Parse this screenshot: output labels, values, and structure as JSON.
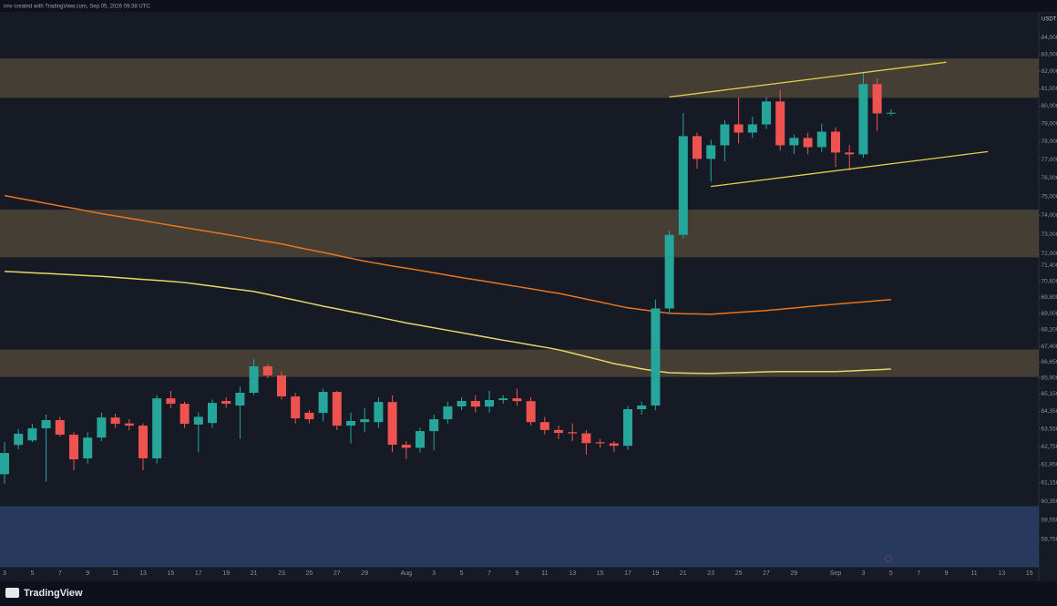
{
  "chart_data": {
    "type": "candlestick",
    "title": "nnv created with TradingView.com, Sep 05, 2026 09:38 UTC",
    "brand": "TradingView",
    "currency": "USDT",
    "log": true,
    "grid": false,
    "up_color": "#26a69a",
    "down_color": "#ef5350",
    "categories": [
      "3",
      null,
      "5",
      null,
      "7",
      null,
      "9",
      null,
      "11",
      null,
      "13",
      null,
      "15",
      null,
      "17",
      null,
      "19",
      null,
      "21",
      null,
      "23",
      null,
      "25",
      null,
      "27",
      null,
      "29",
      null,
      null,
      "Aug",
      null,
      "3",
      null,
      "5",
      null,
      "7",
      null,
      "9",
      null,
      "11",
      null,
      "13",
      null,
      "15",
      null,
      "17",
      null,
      "19",
      null,
      "21",
      null,
      "23",
      null,
      "25",
      null,
      "27",
      null,
      "29",
      null,
      null,
      "Sep",
      null,
      "3",
      null,
      "5",
      null,
      "7",
      null,
      "9",
      null,
      "11",
      null,
      "13",
      null,
      "15"
    ],
    "open": [
      61530,
      62830,
      63030,
      63580,
      63950,
      63290,
      62230,
      63160,
      64070,
      63800,
      63700,
      62230,
      64950,
      64700,
      63750,
      63820,
      64830,
      64620,
      65210,
      66450,
      66020,
      65040,
      64290,
      64280,
      65250,
      63700,
      63860,
      63860,
      64780,
      62840,
      62700,
      63450,
      63990,
      64580,
      64830,
      64570,
      64870,
      64950,
      64820,
      63860,
      63500,
      63400,
      63350,
      62950,
      62900,
      62790,
      64450,
      64620,
      69250,
      72980,
      78300,
      77040,
      77790,
      78960,
      78500,
      78960,
      80260,
      77790,
      78200,
      77690,
      78550,
      77390,
      77290,
      81260,
      79580,
      null,
      null,
      null,
      null,
      null,
      null,
      null,
      null,
      null,
      null
    ],
    "high": [
      62960,
      63540,
      63790,
      64200,
      64100,
      63400,
      63400,
      64300,
      64250,
      64000,
      63800,
      65100,
      65300,
      64800,
      64300,
      64900,
      65000,
      65500,
      66800,
      66550,
      66200,
      65200,
      64400,
      65400,
      65300,
      64300,
      64500,
      65000,
      65100,
      63000,
      63600,
      64200,
      64800,
      65000,
      65100,
      65300,
      65100,
      65400,
      65000,
      64100,
      63700,
      63800,
      63500,
      63100,
      63000,
      64600,
      64800,
      69700,
      73200,
      79600,
      78500,
      78100,
      79200,
      80500,
      79400,
      80500,
      80900,
      78400,
      78500,
      79000,
      78800,
      77800,
      82000,
      81600,
      79800,
      null,
      null,
      null,
      null,
      null,
      null,
      null,
      null,
      null,
      null
    ],
    "low": [
      61120,
      62630,
      62950,
      61200,
      63200,
      61700,
      62000,
      63000,
      63600,
      63500,
      61700,
      62000,
      64500,
      63600,
      62500,
      63600,
      64500,
      63100,
      65100,
      65900,
      64900,
      63800,
      63800,
      63900,
      63500,
      62900,
      63400,
      63600,
      62500,
      62200,
      62500,
      62600,
      63800,
      64400,
      64300,
      64300,
      64700,
      64600,
      63700,
      63300,
      63100,
      63000,
      62400,
      62700,
      62500,
      62600,
      64200,
      64400,
      69000,
      72800,
      76500,
      75800,
      76900,
      77900,
      78200,
      78700,
      77500,
      77300,
      77300,
      77400,
      76600,
      76400,
      77100,
      78600,
      79450,
      null,
      null,
      null,
      null,
      null,
      null,
      null,
      null,
      null,
      null
    ],
    "close": [
      62470,
      63330,
      63580,
      63950,
      63290,
      62190,
      63160,
      64070,
      63780,
      63700,
      62230,
      64950,
      64700,
      63780,
      64100,
      64740,
      64700,
      65210,
      66450,
      66020,
      65040,
      64030,
      63990,
      65250,
      63700,
      63910,
      63990,
      64780,
      62840,
      62700,
      63450,
      63990,
      64580,
      64830,
      64570,
      64870,
      64950,
      64820,
      63860,
      63500,
      63370,
      63350,
      62910,
      62900,
      62790,
      64450,
      64620,
      69250,
      72980,
      78300,
      77040,
      77790,
      78960,
      78500,
      78960,
      80260,
      77790,
      78200,
      77690,
      78550,
      77390,
      77290,
      81260,
      79580,
      79620,
      null,
      null,
      null,
      null,
      null,
      null,
      null,
      null,
      null,
      null
    ],
    "lines": [
      {
        "color": "#e8741f",
        "values": [
          75050,
          74910,
          74780,
          74640,
          74500,
          74370,
          74230,
          74090,
          73970,
          73850,
          73730,
          73600,
          73480,
          73360,
          73240,
          73120,
          73000,
          72880,
          72750,
          72630,
          72510,
          72360,
          72210,
          72070,
          71920,
          71770,
          71620,
          71500,
          71380,
          71270,
          71150,
          71030,
          70910,
          70790,
          70680,
          70570,
          70450,
          70340,
          70230,
          70110,
          70000,
          69860,
          69710,
          69570,
          69420,
          69280,
          69190,
          69100,
          69010,
          68990,
          68980,
          68960,
          69010,
          69060,
          69100,
          69150,
          69210,
          69270,
          69340,
          69400,
          69460,
          69520,
          69570,
          69630,
          69690,
          null,
          null,
          null,
          null,
          null,
          null,
          null,
          null,
          null,
          null
        ]
      },
      {
        "color": "#e8d56a",
        "values": [
          71100,
          71070,
          71030,
          71000,
          70960,
          70930,
          70890,
          70850,
          70800,
          70750,
          70700,
          70650,
          70600,
          70540,
          70450,
          70360,
          70270,
          70180,
          70090,
          69950,
          69800,
          69660,
          69510,
          69360,
          69230,
          69090,
          68960,
          68820,
          68680,
          68540,
          68420,
          68300,
          68180,
          68060,
          67940,
          67820,
          67700,
          67590,
          67470,
          67360,
          67240,
          67080,
          66910,
          66750,
          66580,
          66460,
          66330,
          66230,
          66150,
          66130,
          66120,
          66110,
          66130,
          66150,
          66170,
          66190,
          66200,
          66200,
          66200,
          66200,
          66200,
          66230,
          66260,
          66290,
          66320,
          null,
          null,
          null,
          null,
          null,
          null,
          null,
          null,
          null,
          null
        ]
      }
    ],
    "trendlines": [
      {
        "color": "#e3cf4f",
        "x": [
          48,
          68
        ],
        "values": [
          80520,
          82540
        ]
      },
      {
        "color": "#e3cf4f",
        "x": [
          51,
          71
        ],
        "values": [
          75540,
          77440
        ]
      }
    ],
    "zones": [
      {
        "color": "#4e4538",
        "values": [
          80470,
          82750
        ]
      },
      {
        "color": "#4e4538",
        "values": [
          71820,
          74300
        ]
      },
      {
        "color": "#4e4538",
        "values": [
          65950,
          67250
        ]
      },
      {
        "color": "#2b4068",
        "values": [
          57600,
          60150
        ]
      }
    ],
    "ylim": [
      57600,
      85500
    ],
    "yticks": [
      {
        "value": 84000,
        "label": "84,000"
      },
      {
        "value": 83000,
        "label": "83,000"
      },
      {
        "value": 82000,
        "label": "82,000"
      },
      {
        "value": 81000,
        "label": "81,000"
      },
      {
        "value": 80000,
        "label": "80,000"
      },
      {
        "value": 79000,
        "label": "79,000"
      },
      {
        "value": 78000,
        "label": "78,000"
      },
      {
        "value": 77000,
        "label": "77,000"
      },
      {
        "value": 76000,
        "label": "76,000"
      },
      {
        "value": 75000,
        "label": "75,000"
      },
      {
        "value": 74000,
        "label": "74,000"
      },
      {
        "value": 73000,
        "label": "73,000"
      },
      {
        "value": 72000,
        "label": "72,000"
      },
      {
        "value": 71400,
        "label": "71,400"
      },
      {
        "value": 70600,
        "label": "70,600"
      },
      {
        "value": 69800,
        "label": "69,800"
      },
      {
        "value": 69000,
        "label": "69,000"
      },
      {
        "value": 68200,
        "label": "68,200"
      },
      {
        "value": 67400,
        "label": "67,400"
      },
      {
        "value": 66650,
        "label": "66,650"
      },
      {
        "value": 65900,
        "label": "65,900"
      },
      {
        "value": 65150,
        "label": "65,150"
      },
      {
        "value": 64350,
        "label": "64,350"
      },
      {
        "value": 63550,
        "label": "63,550"
      },
      {
        "value": 62750,
        "label": "62,750"
      },
      {
        "value": 61950,
        "label": "61,950"
      },
      {
        "value": 61150,
        "label": "61,150"
      },
      {
        "value": 60350,
        "label": "60,350"
      },
      {
        "value": 59550,
        "label": "59,550"
      },
      {
        "value": 58750,
        "label": "58,750"
      }
    ]
  }
}
